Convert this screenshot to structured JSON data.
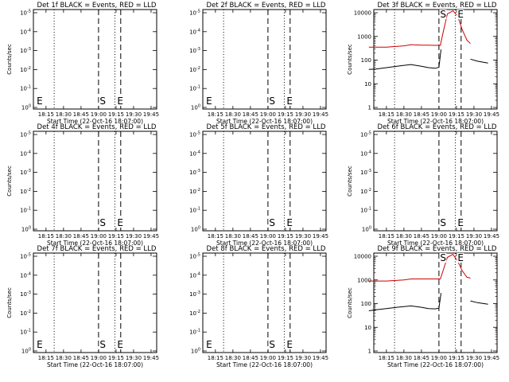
{
  "chart_data": [
    {
      "type": "line",
      "title": "Det 1f BLACK = Events, RED = LLD",
      "xlabel": "Start Time (22-Oct-16 18:07:00)",
      "ylabel": "Counts/sec",
      "scale": "log_blank",
      "x_ticks": [
        "18:15",
        "18:30",
        "18:45",
        "19:00",
        "19:15",
        "19:30",
        "19:45"
      ],
      "y_ticks": [
        "10^0",
        "10^-1",
        "10^-2",
        "10^-3",
        "10^-4",
        "10^-5"
      ],
      "markers": {
        "dotted": [
          "18:22",
          "19:14"
        ],
        "dashed": [
          "19:00",
          "19:19"
        ],
        "letters": [
          {
            "text": "E",
            "at": "18:07"
          },
          {
            "text": "S",
            "at": "19:01"
          },
          {
            "text": "E",
            "at": "19:16"
          }
        ]
      },
      "series": []
    },
    {
      "type": "line",
      "title": "Det 2f BLACK = Events, RED = LLD",
      "xlabel": "Start Time (22-Oct-16 18:07:00)",
      "ylabel": "",
      "scale": "log_blank",
      "x_ticks": [
        "18:15",
        "18:30",
        "18:45",
        "19:00",
        "19:15",
        "19:30",
        "19:45"
      ],
      "y_ticks": [
        "10^0",
        "10^-1",
        "10^-2",
        "10^-3",
        "10^-4",
        "10^-5"
      ],
      "markers": {
        "dotted": [
          "18:22",
          "19:14"
        ],
        "dashed": [
          "19:00",
          "19:19"
        ],
        "letters": [
          {
            "text": "E",
            "at": "18:07"
          },
          {
            "text": "S",
            "at": "19:01"
          },
          {
            "text": "E",
            "at": "19:16"
          }
        ]
      },
      "series": []
    },
    {
      "type": "line",
      "title": "Det 3f BLACK = Events, RED = LLD",
      "xlabel": "Start Time (22-Oct-16 18:07:00)",
      "ylabel": "Counts/sec",
      "scale": "log",
      "ylim": [
        1,
        10000
      ],
      "x_ticks": [
        "18:15",
        "18:30",
        "18:45",
        "19:00",
        "19:15",
        "19:30",
        "19:45"
      ],
      "y_ticks": [
        "1",
        "10",
        "100",
        "1000",
        "10000"
      ],
      "markers": {
        "dotted": [
          "18:22",
          "19:14"
        ],
        "dashed": [
          "19:00",
          "19:19"
        ],
        "letters": [
          {
            "text": "S",
            "at": "19:01"
          },
          {
            "text": "E",
            "at": "19:16"
          }
        ]
      },
      "series": [
        {
          "color": "#cc0000",
          "x": [
            18.0,
            18.25,
            18.5,
            18.6,
            18.75,
            18.85,
            18.95,
            19.0,
            19.02,
            19.06,
            19.12,
            19.2,
            19.27,
            19.33,
            19.4,
            19.45
          ],
          "y": [
            350,
            350,
            400,
            450,
            430,
            430,
            420,
            430,
            420,
            1500,
            9000,
            12000,
            7000,
            2000,
            700,
            500
          ]
        },
        {
          "color": "#000000",
          "x": [
            18.0,
            18.1,
            18.25,
            18.4,
            18.5,
            18.6,
            18.75,
            18.85,
            18.95,
            19.0,
            19.03,
            19.4,
            19.45,
            19.55,
            19.7
          ],
          "y": [
            40,
            42,
            48,
            55,
            60,
            65,
            55,
            48,
            45,
            50,
            280,
            null,
            110,
            90,
            75
          ]
        }
      ]
    },
    {
      "type": "line",
      "title": "Det 4f BLACK = Events, RED = LLD",
      "xlabel": "Start Time (22-Oct-16 18:07:00)",
      "ylabel": "Counts/sec",
      "scale": "log_blank",
      "x_ticks": [
        "18:15",
        "18:30",
        "18:45",
        "19:00",
        "19:15",
        "19:30",
        "19:45"
      ],
      "y_ticks": [
        "10^0",
        "10^-1",
        "10^-2",
        "10^-3",
        "10^-4",
        "10^-5"
      ],
      "markers": {
        "dotted": [
          "18:22",
          "19:14"
        ],
        "dashed": [
          "19:00",
          "19:19"
        ],
        "letters": [
          {
            "text": "S",
            "at": "19:01"
          },
          {
            "text": "E",
            "at": "19:16"
          }
        ]
      },
      "series": []
    },
    {
      "type": "line",
      "title": "Det 5f BLACK = Events, RED = LLD",
      "xlabel": "Start Time (22-Oct-16 18:07:00)",
      "ylabel": "",
      "scale": "log_blank",
      "x_ticks": [
        "18:15",
        "18:30",
        "18:45",
        "19:00",
        "19:15",
        "19:30",
        "19:45"
      ],
      "y_ticks": [
        "10^0",
        "10^-1",
        "10^-2",
        "10^-3",
        "10^-4",
        "10^-5"
      ],
      "markers": {
        "dotted": [
          "18:22",
          "19:14"
        ],
        "dashed": [
          "19:00",
          "19:19"
        ],
        "letters": [
          {
            "text": "S",
            "at": "19:01"
          },
          {
            "text": "E",
            "at": "19:16"
          }
        ]
      },
      "series": []
    },
    {
      "type": "line",
      "title": "Det 6f BLACK = Events, RED = LLD",
      "xlabel": "Start Time (22-Oct-16 18:07:00)",
      "ylabel": "Counts/sec",
      "scale": "log_blank",
      "x_ticks": [
        "18:15",
        "18:30",
        "18:45",
        "19:00",
        "19:15",
        "19:30",
        "19:45"
      ],
      "y_ticks": [
        "10^0",
        "10^-1",
        "10^-2",
        "10^-3",
        "10^-4",
        "10^-5"
      ],
      "markers": {
        "dotted": [
          "18:22",
          "19:14"
        ],
        "dashed": [
          "19:00",
          "19:19"
        ],
        "letters": [
          {
            "text": "S",
            "at": "19:01"
          },
          {
            "text": "E",
            "at": "19:16"
          }
        ]
      },
      "series": []
    },
    {
      "type": "line",
      "title": "Det 7f BLACK = Events, RED = LLD",
      "xlabel": "Start Time (22-Oct-16 18:07:00)",
      "ylabel": "Counts/sec",
      "scale": "log_blank",
      "x_ticks": [
        "18:15",
        "18:30",
        "18:45",
        "19:00",
        "19:15",
        "19:30",
        "19:45"
      ],
      "y_ticks": [
        "10^0",
        "10^-1",
        "10^-2",
        "10^-3",
        "10^-4",
        "10^-5"
      ],
      "markers": {
        "dotted": [
          "18:22",
          "19:14"
        ],
        "dashed": [
          "19:00",
          "19:19"
        ],
        "letters": [
          {
            "text": "E",
            "at": "18:07"
          },
          {
            "text": "S",
            "at": "19:01"
          },
          {
            "text": "E",
            "at": "19:16"
          }
        ]
      },
      "series": []
    },
    {
      "type": "line",
      "title": "Det 8f BLACK = Events, RED = LLD",
      "xlabel": "Start Time (22-Oct-16 18:07:00)",
      "ylabel": "",
      "scale": "log_blank",
      "x_ticks": [
        "18:15",
        "18:30",
        "18:45",
        "19:00",
        "19:15",
        "19:30",
        "19:45"
      ],
      "y_ticks": [
        "10^0",
        "10^-1",
        "10^-2",
        "10^-3",
        "10^-4",
        "10^-5"
      ],
      "markers": {
        "dotted": [
          "18:22",
          "19:14"
        ],
        "dashed": [
          "19:00",
          "19:19"
        ],
        "letters": [
          {
            "text": "E",
            "at": "18:07"
          },
          {
            "text": "S",
            "at": "19:01"
          },
          {
            "text": "E",
            "at": "19:16"
          }
        ]
      },
      "series": []
    },
    {
      "type": "line",
      "title": "Det 9f BLACK = Events, RED = LLD",
      "xlabel": "Start Time (22-Oct-16 18:07:00)",
      "ylabel": "Counts/sec",
      "scale": "log",
      "ylim": [
        1,
        10000
      ],
      "x_ticks": [
        "18:15",
        "18:30",
        "18:45",
        "19:00",
        "19:15",
        "19:30",
        "19:45"
      ],
      "y_ticks": [
        "1",
        "10",
        "100",
        "1000",
        "10000"
      ],
      "markers": {
        "dotted": [
          "18:22",
          "19:14"
        ],
        "dashed": [
          "19:00",
          "19:19"
        ],
        "letters": [
          {
            "text": "S",
            "at": "19:01"
          },
          {
            "text": "E",
            "at": "19:16"
          }
        ]
      },
      "series": [
        {
          "color": "#cc0000",
          "x": [
            18.0,
            18.25,
            18.5,
            18.6,
            18.75,
            18.85,
            18.95,
            19.0,
            19.02,
            19.06,
            19.12,
            19.2,
            19.27,
            19.33,
            19.4,
            19.45
          ],
          "y": [
            900,
            900,
            1000,
            1100,
            1100,
            1100,
            1100,
            1100,
            1100,
            2500,
            9000,
            12000,
            6000,
            2500,
            1300,
            1200
          ]
        },
        {
          "color": "#000000",
          "x": [
            18.0,
            18.1,
            18.25,
            18.4,
            18.5,
            18.6,
            18.75,
            18.85,
            18.95,
            19.0,
            19.03,
            19.4,
            19.45,
            19.55,
            19.7
          ],
          "y": [
            50,
            55,
            62,
            70,
            75,
            80,
            70,
            62,
            60,
            65,
            280,
            null,
            130,
            110,
            95
          ]
        }
      ]
    }
  ]
}
